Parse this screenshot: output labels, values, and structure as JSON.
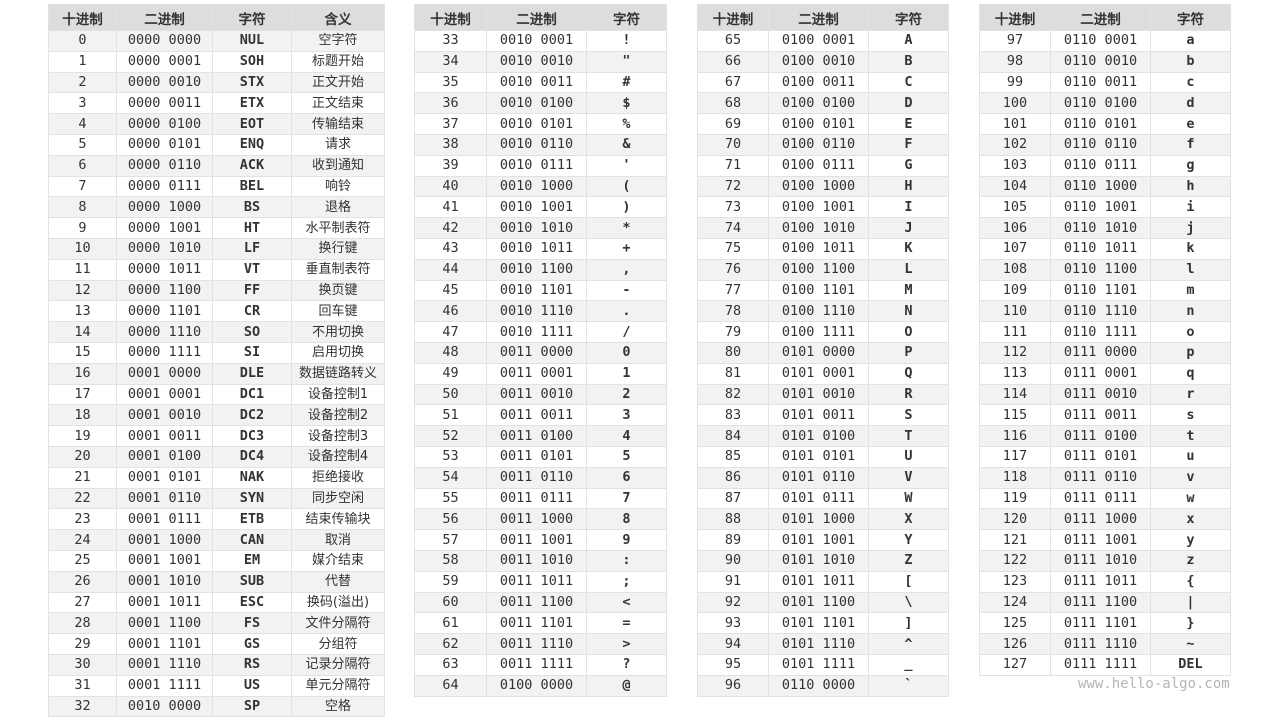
{
  "headers": {
    "dec": "十进制",
    "bin": "二进制",
    "char": "字符",
    "meaning": "含义"
  },
  "watermark": "www.hello-algo.com",
  "tables": [
    {
      "rows": [
        [
          "0",
          "0000 0000",
          "NUL",
          "空字符"
        ],
        [
          "1",
          "0000 0001",
          "SOH",
          "标题开始"
        ],
        [
          "2",
          "0000 0010",
          "STX",
          "正文开始"
        ],
        [
          "3",
          "0000 0011",
          "ETX",
          "正文结束"
        ],
        [
          "4",
          "0000 0100",
          "EOT",
          "传输结束"
        ],
        [
          "5",
          "0000 0101",
          "ENQ",
          "请求"
        ],
        [
          "6",
          "0000 0110",
          "ACK",
          "收到通知"
        ],
        [
          "7",
          "0000 0111",
          "BEL",
          "响铃"
        ],
        [
          "8",
          "0000 1000",
          "BS",
          "退格"
        ],
        [
          "9",
          "0000 1001",
          "HT",
          "水平制表符"
        ],
        [
          "10",
          "0000 1010",
          "LF",
          "换行键"
        ],
        [
          "11",
          "0000 1011",
          "VT",
          "垂直制表符"
        ],
        [
          "12",
          "0000 1100",
          "FF",
          "换页键"
        ],
        [
          "13",
          "0000 1101",
          "CR",
          "回车键"
        ],
        [
          "14",
          "0000 1110",
          "SO",
          "不用切换"
        ],
        [
          "15",
          "0000 1111",
          "SI",
          "启用切换"
        ],
        [
          "16",
          "0001 0000",
          "DLE",
          "数据链路转义"
        ],
        [
          "17",
          "0001 0001",
          "DC1",
          "设备控制1"
        ],
        [
          "18",
          "0001 0010",
          "DC2",
          "设备控制2"
        ],
        [
          "19",
          "0001 0011",
          "DC3",
          "设备控制3"
        ],
        [
          "20",
          "0001 0100",
          "DC4",
          "设备控制4"
        ],
        [
          "21",
          "0001 0101",
          "NAK",
          "拒绝接收"
        ],
        [
          "22",
          "0001 0110",
          "SYN",
          "同步空闲"
        ],
        [
          "23",
          "0001 0111",
          "ETB",
          "结束传输块"
        ],
        [
          "24",
          "0001 1000",
          "CAN",
          "取消"
        ],
        [
          "25",
          "0001 1001",
          "EM",
          "媒介结束"
        ],
        [
          "26",
          "0001 1010",
          "SUB",
          "代替"
        ],
        [
          "27",
          "0001 1011",
          "ESC",
          "换码(溢出)"
        ],
        [
          "28",
          "0001 1100",
          "FS",
          "文件分隔符"
        ],
        [
          "29",
          "0001 1101",
          "GS",
          "分组符"
        ],
        [
          "30",
          "0001 1110",
          "RS",
          "记录分隔符"
        ],
        [
          "31",
          "0001 1111",
          "US",
          "单元分隔符"
        ],
        [
          "32",
          "0010 0000",
          "SP",
          "空格"
        ]
      ]
    },
    {
      "rows": [
        [
          "33",
          "0010 0001",
          "!"
        ],
        [
          "34",
          "0010 0010",
          "\""
        ],
        [
          "35",
          "0010 0011",
          "#"
        ],
        [
          "36",
          "0010 0100",
          "$"
        ],
        [
          "37",
          "0010 0101",
          "%"
        ],
        [
          "38",
          "0010 0110",
          "&"
        ],
        [
          "39",
          "0010 0111",
          "'"
        ],
        [
          "40",
          "0010 1000",
          "("
        ],
        [
          "41",
          "0010 1001",
          ")"
        ],
        [
          "42",
          "0010 1010",
          "*"
        ],
        [
          "43",
          "0010 1011",
          "+"
        ],
        [
          "44",
          "0010 1100",
          ","
        ],
        [
          "45",
          "0010 1101",
          "-"
        ],
        [
          "46",
          "0010 1110",
          "."
        ],
        [
          "47",
          "0010 1111",
          "/"
        ],
        [
          "48",
          "0011 0000",
          "0"
        ],
        [
          "49",
          "0011 0001",
          "1"
        ],
        [
          "50",
          "0011 0010",
          "2"
        ],
        [
          "51",
          "0011 0011",
          "3"
        ],
        [
          "52",
          "0011 0100",
          "4"
        ],
        [
          "53",
          "0011 0101",
          "5"
        ],
        [
          "54",
          "0011 0110",
          "6"
        ],
        [
          "55",
          "0011 0111",
          "7"
        ],
        [
          "56",
          "0011 1000",
          "8"
        ],
        [
          "57",
          "0011 1001",
          "9"
        ],
        [
          "58",
          "0011 1010",
          ":"
        ],
        [
          "59",
          "0011 1011",
          ";"
        ],
        [
          "60",
          "0011 1100",
          "<"
        ],
        [
          "61",
          "0011 1101",
          "="
        ],
        [
          "62",
          "0011 1110",
          ">"
        ],
        [
          "63",
          "0011 1111",
          "?"
        ],
        [
          "64",
          "0100 0000",
          "@"
        ]
      ]
    },
    {
      "rows": [
        [
          "65",
          "0100 0001",
          "A"
        ],
        [
          "66",
          "0100 0010",
          "B"
        ],
        [
          "67",
          "0100 0011",
          "C"
        ],
        [
          "68",
          "0100 0100",
          "D"
        ],
        [
          "69",
          "0100 0101",
          "E"
        ],
        [
          "70",
          "0100 0110",
          "F"
        ],
        [
          "71",
          "0100 0111",
          "G"
        ],
        [
          "72",
          "0100 1000",
          "H"
        ],
        [
          "73",
          "0100 1001",
          "I"
        ],
        [
          "74",
          "0100 1010",
          "J"
        ],
        [
          "75",
          "0100 1011",
          "K"
        ],
        [
          "76",
          "0100 1100",
          "L"
        ],
        [
          "77",
          "0100 1101",
          "M"
        ],
        [
          "78",
          "0100 1110",
          "N"
        ],
        [
          "79",
          "0100 1111",
          "O"
        ],
        [
          "80",
          "0101 0000",
          "P"
        ],
        [
          "81",
          "0101 0001",
          "Q"
        ],
        [
          "82",
          "0101 0010",
          "R"
        ],
        [
          "83",
          "0101 0011",
          "S"
        ],
        [
          "84",
          "0101 0100",
          "T"
        ],
        [
          "85",
          "0101 0101",
          "U"
        ],
        [
          "86",
          "0101 0110",
          "V"
        ],
        [
          "87",
          "0101 0111",
          "W"
        ],
        [
          "88",
          "0101 1000",
          "X"
        ],
        [
          "89",
          "0101 1001",
          "Y"
        ],
        [
          "90",
          "0101 1010",
          "Z"
        ],
        [
          "91",
          "0101 1011",
          "["
        ],
        [
          "92",
          "0101 1100",
          "\\"
        ],
        [
          "93",
          "0101 1101",
          "]"
        ],
        [
          "94",
          "0101 1110",
          "^"
        ],
        [
          "95",
          "0101 1111",
          "_"
        ],
        [
          "96",
          "0110 0000",
          "`"
        ]
      ]
    },
    {
      "rows": [
        [
          "97",
          "0110 0001",
          "a"
        ],
        [
          "98",
          "0110 0010",
          "b"
        ],
        [
          "99",
          "0110 0011",
          "c"
        ],
        [
          "100",
          "0110 0100",
          "d"
        ],
        [
          "101",
          "0110 0101",
          "e"
        ],
        [
          "102",
          "0110 0110",
          "f"
        ],
        [
          "103",
          "0110 0111",
          "g"
        ],
        [
          "104",
          "0110 1000",
          "h"
        ],
        [
          "105",
          "0110 1001",
          "i"
        ],
        [
          "106",
          "0110 1010",
          "j"
        ],
        [
          "107",
          "0110 1011",
          "k"
        ],
        [
          "108",
          "0110 1100",
          "l"
        ],
        [
          "109",
          "0110 1101",
          "m"
        ],
        [
          "110",
          "0110 1110",
          "n"
        ],
        [
          "111",
          "0110 1111",
          "o"
        ],
        [
          "112",
          "0111 0000",
          "p"
        ],
        [
          "113",
          "0111 0001",
          "q"
        ],
        [
          "114",
          "0111 0010",
          "r"
        ],
        [
          "115",
          "0111 0011",
          "s"
        ],
        [
          "116",
          "0111 0100",
          "t"
        ],
        [
          "117",
          "0111 0101",
          "u"
        ],
        [
          "118",
          "0111 0110",
          "v"
        ],
        [
          "119",
          "0111 0111",
          "w"
        ],
        [
          "120",
          "0111 1000",
          "x"
        ],
        [
          "121",
          "0111 1001",
          "y"
        ],
        [
          "122",
          "0111 1010",
          "z"
        ],
        [
          "123",
          "0111 1011",
          "{"
        ],
        [
          "124",
          "0111 1100",
          "|"
        ],
        [
          "125",
          "0111 1101",
          "}"
        ],
        [
          "126",
          "0111 1110",
          "~"
        ],
        [
          "127",
          "0111 1111",
          "DEL"
        ]
      ]
    }
  ]
}
